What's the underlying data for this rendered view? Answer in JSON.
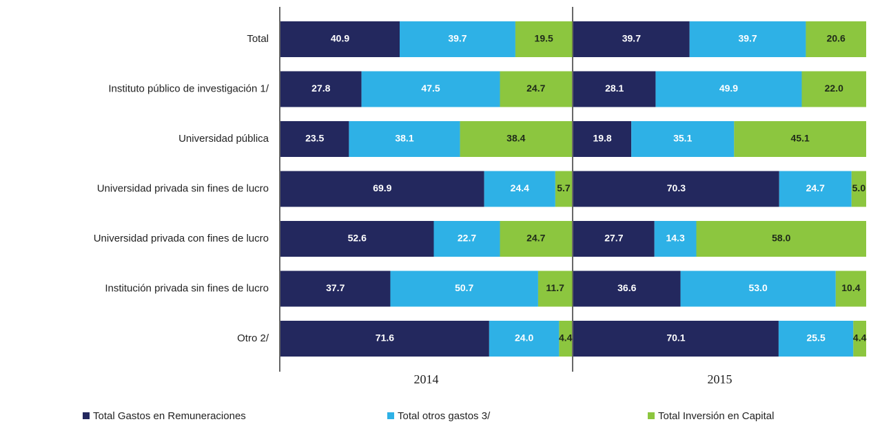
{
  "chart_data": {
    "type": "bar",
    "orientation": "horizontal",
    "stacked": true,
    "categories": [
      "Total",
      "Instituto público de investigación 1/",
      "Universidad pública",
      "Universidad privada sin fines de lucro",
      "Universidad privada con fines de lucro",
      "Institución privada sin fines de lucro",
      "Otro 2/"
    ],
    "panels": [
      "2014",
      "2015"
    ],
    "xlim": [
      0,
      100
    ],
    "series": [
      {
        "name": "Total Gastos en Remuneraciones",
        "color": "#23285e",
        "label_color": "#ffffff",
        "values": [
          [
            40.9,
            27.8,
            23.5,
            69.9,
            52.6,
            37.7,
            71.6
          ],
          [
            39.7,
            28.1,
            19.8,
            70.3,
            27.7,
            36.6,
            70.1
          ]
        ],
        "value_labels": [
          [
            "40.9",
            "27.8",
            "23.5",
            "69.9",
            "52.6",
            "37.7",
            "71.6"
          ],
          [
            "39.7",
            "28.1",
            "19.8",
            "70.3",
            "27.7",
            "36.6",
            "70.1"
          ]
        ]
      },
      {
        "name": "Total otros gastos 3/",
        "color": "#2eb1e6",
        "label_color": "#ffffff",
        "values": [
          [
            39.7,
            47.5,
            38.1,
            24.4,
            22.7,
            50.7,
            24.0
          ],
          [
            39.7,
            49.9,
            35.1,
            24.7,
            14.3,
            53.0,
            25.5
          ]
        ],
        "value_labels": [
          [
            "39.7",
            "47.5",
            "38.1",
            "24.4",
            "22.7",
            "50.7",
            "24.0"
          ],
          [
            "39.7",
            "49.9",
            "35.1",
            "24.7",
            "14.3",
            "53.0",
            "25.5"
          ]
        ]
      },
      {
        "name": "Total Inversión en Capital",
        "color": "#8cc63f",
        "label_color": "#1f2a1a",
        "values": [
          [
            19.5,
            24.7,
            38.4,
            5.7,
            24.7,
            11.7,
            4.4
          ],
          [
            20.6,
            22.0,
            45.1,
            5.0,
            58.0,
            10.4,
            4.4
          ]
        ],
        "value_labels": [
          [
            "19.5",
            "24.7",
            "38.4",
            "5.7",
            "24.7",
            "11.7",
            "4.4"
          ],
          [
            "20.6",
            "22.0",
            "45.1",
            "5.0",
            "58.0",
            "10.4",
            "4.4"
          ]
        ]
      }
    ]
  }
}
